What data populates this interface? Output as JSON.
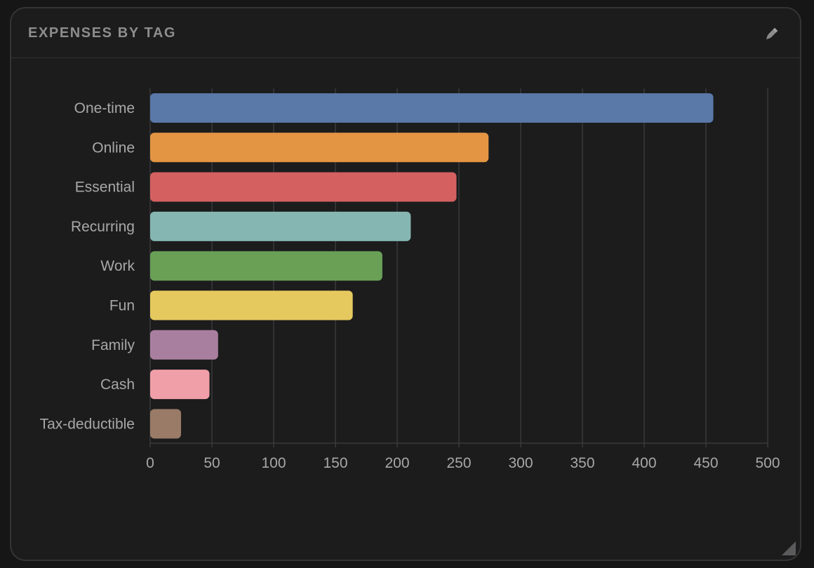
{
  "panel": {
    "title": "EXPENSES BY TAG",
    "edit_icon": "pencil-icon",
    "resize_icon": "resize-corner-icon"
  },
  "colors": {
    "background": "#1c1c1d",
    "grid": "#3a3a3c",
    "label": "#a8a8a8",
    "title": "#8d8d8d"
  },
  "chart_data": {
    "type": "bar",
    "orientation": "horizontal",
    "categories": [
      "One-time",
      "Online",
      "Essential",
      "Recurring",
      "Work",
      "Fun",
      "Family",
      "Cash",
      "Tax-deductible"
    ],
    "values": [
      456,
      274,
      248,
      211,
      188,
      164,
      55,
      48,
      25
    ],
    "colors": [
      "#5a78a8",
      "#e49543",
      "#d46060",
      "#85b6b2",
      "#69a056",
      "#e6c95e",
      "#a97f9f",
      "#f09fa8",
      "#9a7b67"
    ],
    "xlim": [
      0,
      500
    ],
    "xticks": [
      "0",
      "50",
      "100",
      "150",
      "200",
      "250",
      "300",
      "350",
      "400",
      "450",
      "500"
    ],
    "title": "",
    "xlabel": "",
    "ylabel": "",
    "grid": "vertical",
    "legend": "none"
  }
}
